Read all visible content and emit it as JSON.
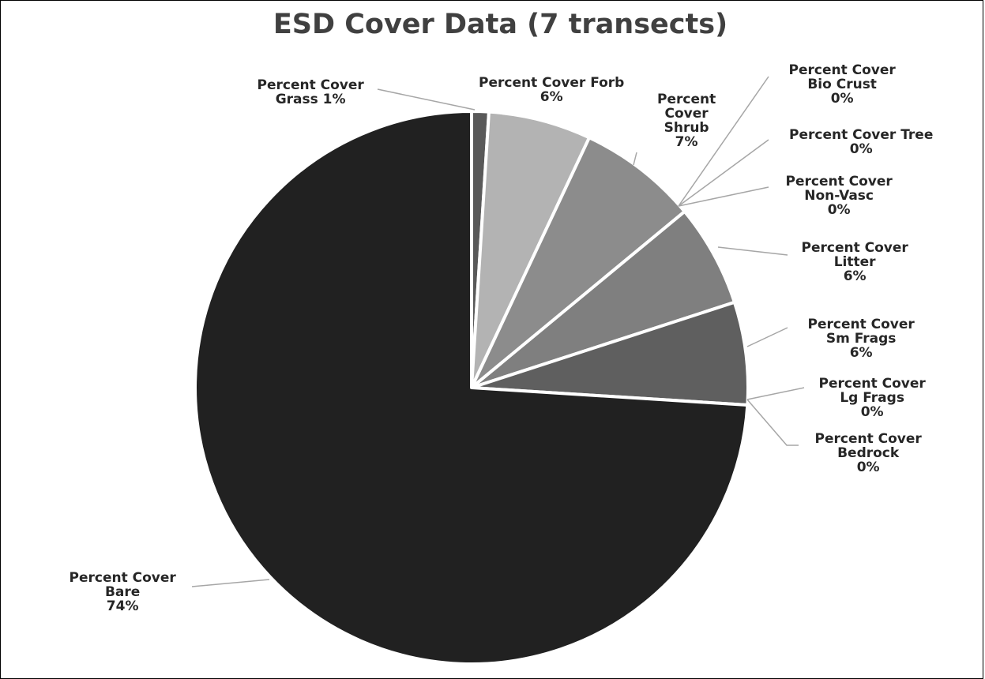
{
  "chart_data": {
    "type": "pie",
    "title": "ESD Cover Data (7 transects)",
    "slices": [
      {
        "label_lines": [
          "Percent Cover",
          "Grass 1%"
        ],
        "value": 1,
        "color": "#595959"
      },
      {
        "label_lines": [
          "Percent Cover Forb",
          "6%"
        ],
        "value": 6,
        "color": "#b3b3b3"
      },
      {
        "label_lines": [
          "Percent",
          "Cover",
          "Shrub",
          "7%"
        ],
        "value": 7,
        "color": "#8c8c8c"
      },
      {
        "label_lines": [
          "Percent Cover",
          "Bio Crust",
          "0%"
        ],
        "value": 0,
        "color": "#a6a6a6"
      },
      {
        "label_lines": [
          "Percent Cover Tree",
          "0%"
        ],
        "value": 0,
        "color": "#999999"
      },
      {
        "label_lines": [
          "Percent Cover",
          "Non-Vasc",
          "0%"
        ],
        "value": 0,
        "color": "#8c8c8c"
      },
      {
        "label_lines": [
          "Percent Cover",
          "Litter",
          "6%"
        ],
        "value": 6,
        "color": "#7f7f7f"
      },
      {
        "label_lines": [
          "Percent Cover",
          "Sm Frags",
          "6%"
        ],
        "value": 6,
        "color": "#5f5f5f"
      },
      {
        "label_lines": [
          "Percent Cover",
          "Lg Frags",
          "0%"
        ],
        "value": 0,
        "color": "#4d4d4d"
      },
      {
        "label_lines": [
          "Percent Cover",
          "Bedrock",
          "0%"
        ],
        "value": 0,
        "color": "#404040"
      },
      {
        "label_lines": [
          "Percent Cover",
          "Bare",
          "74%"
        ],
        "value": 74,
        "color": "#212121"
      }
    ]
  }
}
